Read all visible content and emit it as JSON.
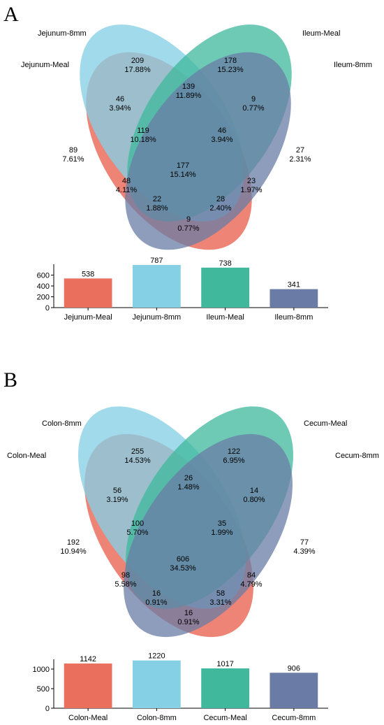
{
  "colors": {
    "meal_small": "#ea6f5d",
    "mm8_small": "#86d0e6",
    "meal_large": "#3fb89c",
    "mm8_large": "#6a7ca6"
  },
  "panels": [
    {
      "letter": "A",
      "sets": [
        "Jejunum-Meal",
        "Jejunum-8mm",
        "Ileum-Meal",
        "Ileum-8mm"
      ],
      "regions": [
        {
          "count": "209",
          "pct": "17.88%"
        },
        {
          "count": "178",
          "pct": "15.23%"
        },
        {
          "count": "139",
          "pct": "11.89%"
        },
        {
          "count": "46",
          "pct": "3.94%"
        },
        {
          "count": "9",
          "pct": "0.77%"
        },
        {
          "count": "119",
          "pct": "10.18%"
        },
        {
          "count": "46",
          "pct": "3.94%"
        },
        {
          "count": "89",
          "pct": "7.61%"
        },
        {
          "count": "27",
          "pct": "2.31%"
        },
        {
          "count": "177",
          "pct": "15.14%"
        },
        {
          "count": "48",
          "pct": "4.11%"
        },
        {
          "count": "23",
          "pct": "1.97%"
        },
        {
          "count": "22",
          "pct": "1.88%"
        },
        {
          "count": "28",
          "pct": "2.40%"
        },
        {
          "count": "9",
          "pct": "0.77%"
        }
      ],
      "chart_data": {
        "type": "bar",
        "categories": [
          "Jejunum-Meal",
          "Jejunum-8mm",
          "Ileum-Meal",
          "Ileum-8mm"
        ],
        "values": [
          538,
          787,
          738,
          341
        ],
        "value_labels": [
          "538",
          "787",
          "738",
          "341"
        ],
        "ylim": [
          0,
          800
        ],
        "yticks": [
          0,
          200,
          400,
          600
        ],
        "ytick_labels": [
          "0",
          "200",
          "400",
          "600"
        ],
        "grid": false
      }
    },
    {
      "letter": "B",
      "sets": [
        "Colon-Meal",
        "Colon-8mm",
        "Cecum-Meal",
        "Cecum-8mm"
      ],
      "regions": [
        {
          "count": "255",
          "pct": "14.53%"
        },
        {
          "count": "122",
          "pct": "6.95%"
        },
        {
          "count": "26",
          "pct": "1.48%"
        },
        {
          "count": "56",
          "pct": "3.19%"
        },
        {
          "count": "14",
          "pct": "0.80%"
        },
        {
          "count": "100",
          "pct": "5.70%"
        },
        {
          "count": "35",
          "pct": "1.99%"
        },
        {
          "count": "192",
          "pct": "10.94%"
        },
        {
          "count": "77",
          "pct": "4.39%"
        },
        {
          "count": "606",
          "pct": "34.53%"
        },
        {
          "count": "98",
          "pct": "5.58%"
        },
        {
          "count": "84",
          "pct": "4.79%"
        },
        {
          "count": "16",
          "pct": "0.91%"
        },
        {
          "count": "58",
          "pct": "3.31%"
        },
        {
          "count": "16",
          "pct": "0.91%"
        }
      ],
      "chart_data": {
        "type": "bar",
        "categories": [
          "Colon-Meal",
          "Colon-8mm",
          "Cecum-Meal",
          "Cecum-8mm"
        ],
        "values": [
          1142,
          1220,
          1017,
          906
        ],
        "value_labels": [
          "1142",
          "1220",
          "1017",
          "906"
        ],
        "ylim": [
          0,
          1250
        ],
        "yticks": [
          0,
          500,
          1000
        ],
        "ytick_labels": [
          "0",
          "500",
          "1000"
        ],
        "grid": false
      }
    }
  ]
}
